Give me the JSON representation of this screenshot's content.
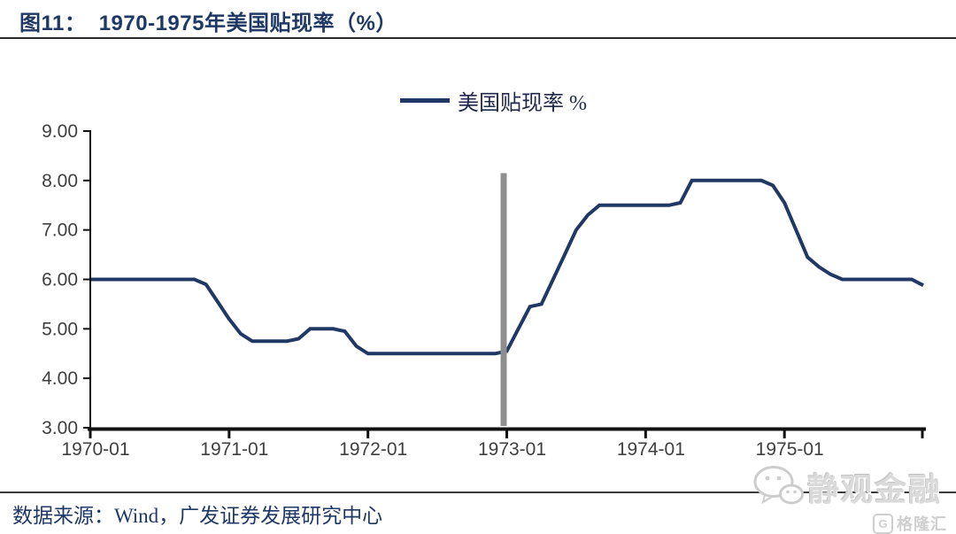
{
  "page": {
    "title": "图11：  1970-1975年美国贴现率（%）",
    "source_note": "数据来源：Wind，广发证券发展研究中心"
  },
  "legend": {
    "series_label": "美国贴现率 %"
  },
  "watermark": {
    "brand": "静观金融",
    "partner_letter": "G",
    "partner_name": "格隆汇"
  },
  "colors": {
    "line": "#1f3864",
    "axis": "#111111",
    "tick_label": "#3f3f3f",
    "title": "#1f3864",
    "event_bar": "#8f8f8f",
    "watermark": "#d6d6d6"
  },
  "chart_data": {
    "type": "line",
    "title": "1970-1975年美国贴现率（%）",
    "xlabel": "",
    "ylabel": "",
    "ylim": [
      3.0,
      9.0
    ],
    "grid": false,
    "legend_position": "top-center",
    "yticks": [
      "9.00",
      "8.00",
      "7.00",
      "6.00",
      "5.00",
      "4.00",
      "3.00"
    ],
    "xticks": [
      "1970-01",
      "1971-01",
      "1972-01",
      "1973-01",
      "1974-01",
      "1975-01"
    ],
    "event_line": {
      "x": "1973-01",
      "y_from": 3.0,
      "y_to": 8.15,
      "color": "#8f8f8f"
    },
    "series": [
      {
        "name": "美国贴现率 %",
        "x": [
          "1970-01",
          "1970-02",
          "1970-03",
          "1970-04",
          "1970-05",
          "1970-06",
          "1970-07",
          "1970-08",
          "1970-09",
          "1970-10",
          "1970-11",
          "1970-12",
          "1971-01",
          "1971-02",
          "1971-03",
          "1971-04",
          "1971-05",
          "1971-06",
          "1971-07",
          "1971-08",
          "1971-09",
          "1971-10",
          "1971-11",
          "1971-12",
          "1972-01",
          "1972-02",
          "1972-03",
          "1972-04",
          "1972-05",
          "1972-06",
          "1972-07",
          "1972-08",
          "1972-09",
          "1972-10",
          "1972-11",
          "1972-12",
          "1973-01",
          "1973-02",
          "1973-03",
          "1973-04",
          "1973-05",
          "1973-06",
          "1973-07",
          "1973-08",
          "1973-09",
          "1973-10",
          "1973-11",
          "1973-12",
          "1974-01",
          "1974-02",
          "1974-03",
          "1974-04",
          "1974-05",
          "1974-06",
          "1974-07",
          "1974-08",
          "1974-09",
          "1974-10",
          "1974-11",
          "1974-12",
          "1975-01",
          "1975-02",
          "1975-03",
          "1975-04",
          "1975-05",
          "1975-06",
          "1975-07",
          "1975-08",
          "1975-09",
          "1975-10",
          "1975-11",
          "1975-12",
          "1976-01"
        ],
        "values": [
          6.0,
          6.0,
          6.0,
          6.0,
          6.0,
          6.0,
          6.0,
          6.0,
          6.0,
          6.0,
          5.9,
          5.55,
          5.2,
          4.9,
          4.75,
          4.75,
          4.75,
          4.75,
          4.8,
          5.0,
          5.0,
          5.0,
          4.95,
          4.65,
          4.5,
          4.5,
          4.5,
          4.5,
          4.5,
          4.5,
          4.5,
          4.5,
          4.5,
          4.5,
          4.5,
          4.5,
          4.55,
          5.0,
          5.45,
          5.5,
          6.0,
          6.5,
          7.0,
          7.3,
          7.5,
          7.5,
          7.5,
          7.5,
          7.5,
          7.5,
          7.5,
          7.55,
          8.0,
          8.0,
          8.0,
          8.0,
          8.0,
          8.0,
          8.0,
          7.9,
          7.55,
          7.0,
          6.45,
          6.25,
          6.1,
          6.0,
          6.0,
          6.0,
          6.0,
          6.0,
          6.0,
          6.0,
          5.88
        ]
      }
    ]
  }
}
